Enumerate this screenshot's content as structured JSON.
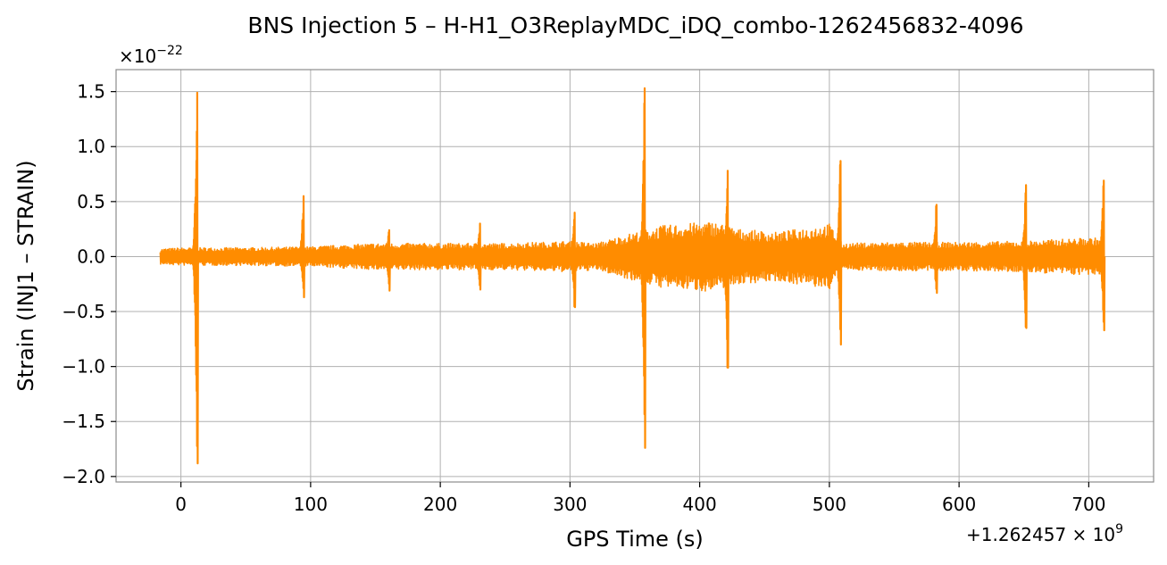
{
  "chart_data": {
    "type": "line",
    "title": "BNS Injection 5 – H-H1_O3ReplayMDC_iDQ_combo-1262456832-4096",
    "xlabel": "GPS Time (s)",
    "ylabel": "Strain (INJ1 – STRAIN)",
    "y_scale_prefix": "×10",
    "y_scale_exponent": "−22",
    "x_offset_prefix": "+1.262457 × 10",
    "x_offset_exponent": "9",
    "xlim": [
      -50,
      750
    ],
    "ylim": [
      -2.05,
      1.7
    ],
    "x_ticks": [
      0,
      100,
      200,
      300,
      400,
      500,
      600,
      700
    ],
    "x_tick_labels": [
      "0",
      "100",
      "200",
      "300",
      "400",
      "500",
      "600",
      "700"
    ],
    "y_ticks": [
      -2.0,
      -1.5,
      -1.0,
      -0.5,
      0.0,
      0.5,
      1.0,
      1.5
    ],
    "y_tick_labels": [
      "−2.0",
      "−1.5",
      "−1.0",
      "−0.5",
      "0.0",
      "0.5",
      "1.0",
      "1.5"
    ],
    "grid": true,
    "color": "#ff8c00",
    "series": [
      {
        "x_range": [
          -16,
          712
        ],
        "envelope": [
          [
            -16,
            0.07
          ],
          [
            0,
            0.08
          ],
          [
            50,
            0.08
          ],
          [
            100,
            0.09
          ],
          [
            150,
            0.12
          ],
          [
            200,
            0.12
          ],
          [
            250,
            0.12
          ],
          [
            300,
            0.14
          ],
          [
            320,
            0.12
          ],
          [
            350,
            0.22
          ],
          [
            370,
            0.28
          ],
          [
            390,
            0.3
          ],
          [
            410,
            0.32
          ],
          [
            430,
            0.25
          ],
          [
            460,
            0.22
          ],
          [
            500,
            0.3
          ],
          [
            510,
            0.12
          ],
          [
            550,
            0.13
          ],
          [
            600,
            0.13
          ],
          [
            650,
            0.14
          ],
          [
            700,
            0.17
          ],
          [
            712,
            0.17
          ]
        ],
        "spikes": [
          {
            "x": 12,
            "max": 1.49,
            "min": -1.88
          },
          {
            "x": 94,
            "max": 0.55,
            "min": -0.37
          },
          {
            "x": 160,
            "max": 0.24,
            "min": -0.31
          },
          {
            "x": 230,
            "max": 0.3,
            "min": -0.3
          },
          {
            "x": 303,
            "max": 0.4,
            "min": -0.46
          },
          {
            "x": 357,
            "max": 1.53,
            "min": -1.74
          },
          {
            "x": 421,
            "max": 0.78,
            "min": -1.01
          },
          {
            "x": 508,
            "max": 0.87,
            "min": -0.8
          },
          {
            "x": 582,
            "max": 0.47,
            "min": -0.33
          },
          {
            "x": 651,
            "max": 0.65,
            "min": -0.65
          },
          {
            "x": 711,
            "max": 0.69,
            "min": -0.67
          }
        ]
      }
    ]
  }
}
